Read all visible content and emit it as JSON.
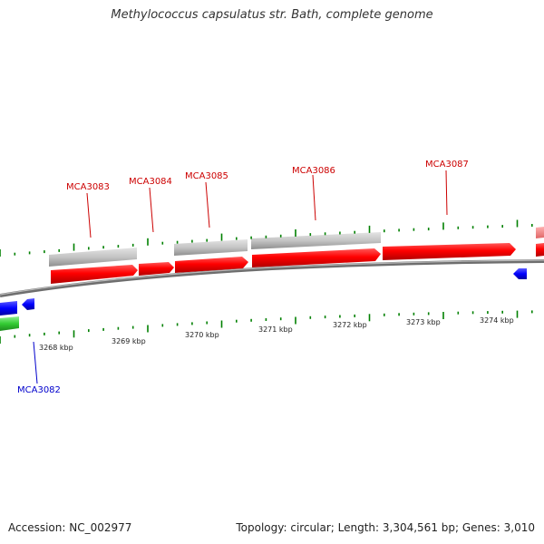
{
  "title": "Methylococcus capsulatus str. Bath, complete genome",
  "footer": {
    "accession": "Accession: NC_002977",
    "summary": "Topology: circular; Length: 3,304,561 bp; Genes: 3,010"
  },
  "colors": {
    "forward_cds": "#ff0000",
    "reverse_cds": "#0000ff",
    "other_feature": "#33cc33",
    "rna_feature": "#ff8080",
    "gene_track": "#c0c0c0",
    "backbone": "#808080",
    "ticks": "#008000",
    "label_forward": "#cc0000",
    "label_reverse": "#0000cc"
  },
  "scale_labels": [
    "3268 kbp",
    "3269 kbp",
    "3270 kbp",
    "3271 kbp",
    "3272 kbp",
    "3273 kbp",
    "3274 kbp"
  ],
  "gene_labels": [
    {
      "name": "MCA3083",
      "strand": "forward"
    },
    {
      "name": "MCA3084",
      "strand": "forward"
    },
    {
      "name": "MCA3085",
      "strand": "forward"
    },
    {
      "name": "MCA3086",
      "strand": "forward"
    },
    {
      "name": "MCA3087",
      "strand": "forward"
    },
    {
      "name": "MCA3082",
      "strand": "reverse"
    }
  ]
}
